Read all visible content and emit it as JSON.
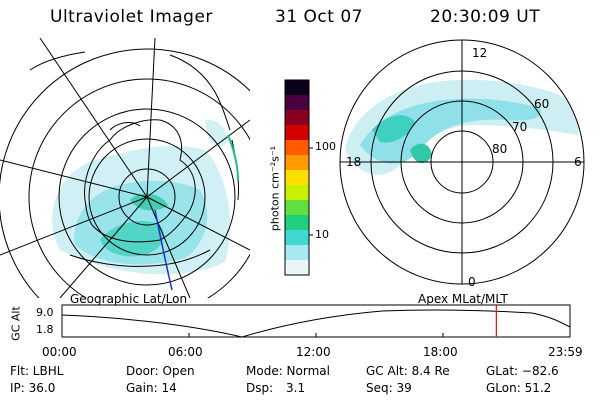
{
  "header": {
    "instrument": "Ultraviolet Imager",
    "date": "31 Oct 07",
    "time": "20:30:09 UT"
  },
  "colorbar": {
    "label": "photon cm⁻²s⁻¹",
    "ticks": [
      "100",
      "10"
    ],
    "colors": [
      "#0a0018",
      "#4a0040",
      "#8a0020",
      "#d40000",
      "#ff5a00",
      "#ff9a00",
      "#ffe000",
      "#c8f000",
      "#60e040",
      "#20d080",
      "#40d8d0",
      "#a8e8f0",
      "#e8f6f8"
    ]
  },
  "geo_plot": {
    "label": "Geographic Lat/Lon"
  },
  "mag_plot": {
    "label": "Apex MLat/MLT",
    "mlt_labels": {
      "top": "12",
      "left": "18",
      "right": "6",
      "bottom": "0"
    },
    "lat_labels": [
      "60",
      "70",
      "80"
    ]
  },
  "timeline": {
    "ylabel": "GC Alt",
    "y_ticks": [
      "9.0",
      "1.8"
    ],
    "x_ticks": [
      "00:00",
      "06:00",
      "12:00",
      "18:00",
      "23:59"
    ],
    "current_time_fraction": 0.855,
    "marker_color": "#e01010"
  },
  "info": {
    "filter": "Flt: LBHL",
    "door": "Door: Open",
    "mode": "Mode: Normal",
    "gc_alt": "GC Alt: 8.4 Re",
    "glat": "GLat: −82.6",
    "ip": "IP: 36.0",
    "gain": "Gain: 14",
    "dsp_label": "Dsp:",
    "dsp_value": "3.1",
    "seq": "Seq: 39",
    "glon": "GLon:  51.2"
  }
}
